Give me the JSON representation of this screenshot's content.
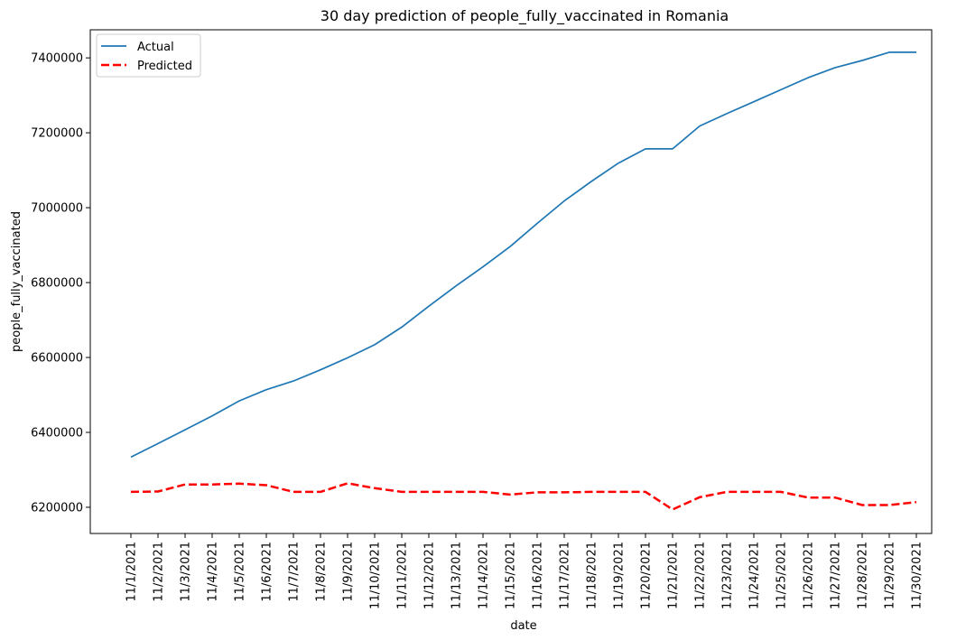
{
  "chart_data": {
    "type": "line",
    "title": "30 day prediction of people_fully_vaccinated in Romania",
    "xlabel": "date",
    "ylabel": "people_fully_vaccinated",
    "categories": [
      "11/1/2021",
      "11/2/2021",
      "11/3/2021",
      "11/4/2021",
      "11/5/2021",
      "11/6/2021",
      "11/7/2021",
      "11/8/2021",
      "11/9/2021",
      "11/10/2021",
      "11/11/2021",
      "11/12/2021",
      "11/13/2021",
      "11/14/2021",
      "11/15/2021",
      "11/16/2021",
      "11/17/2021",
      "11/18/2021",
      "11/19/2021",
      "11/20/2021",
      "11/21/2021",
      "11/22/2021",
      "11/23/2021",
      "11/24/2021",
      "11/25/2021",
      "11/26/2021",
      "11/27/2021",
      "11/28/2021",
      "11/29/2021",
      "11/30/2021"
    ],
    "ylim": [
      6130000,
      7475000
    ],
    "yticks": [
      6200000,
      6400000,
      6600000,
      6800000,
      7000000,
      7200000,
      7400000
    ],
    "grid": false,
    "legend_position": "top-left",
    "series": [
      {
        "name": "Actual",
        "color": "#1f77b4",
        "style": "solid",
        "values": [
          6334000,
          6370000,
          6407000,
          6444000,
          6484000,
          6514000,
          6537000,
          6567000,
          6599000,
          6634000,
          6681000,
          6737000,
          6791000,
          6842000,
          6896000,
          6958000,
          7018000,
          7070000,
          7119000,
          7157000,
          7157000,
          7218000,
          7251000,
          7283000,
          7315000,
          7347000,
          7374000,
          7393000,
          7415000,
          7415000
        ]
      },
      {
        "name": "Predicted",
        "color": "#ff0000",
        "style": "dashed",
        "values": [
          6241000,
          6242000,
          6261000,
          6261000,
          6263000,
          6259000,
          6241000,
          6241000,
          6264000,
          6251000,
          6241000,
          6241000,
          6241000,
          6241000,
          6234000,
          6240000,
          6240000,
          6241000,
          6241000,
          6241000,
          6194000,
          6227000,
          6241000,
          6241000,
          6241000,
          6226000,
          6226000,
          6206000,
          6206000,
          6214000
        ]
      }
    ]
  }
}
